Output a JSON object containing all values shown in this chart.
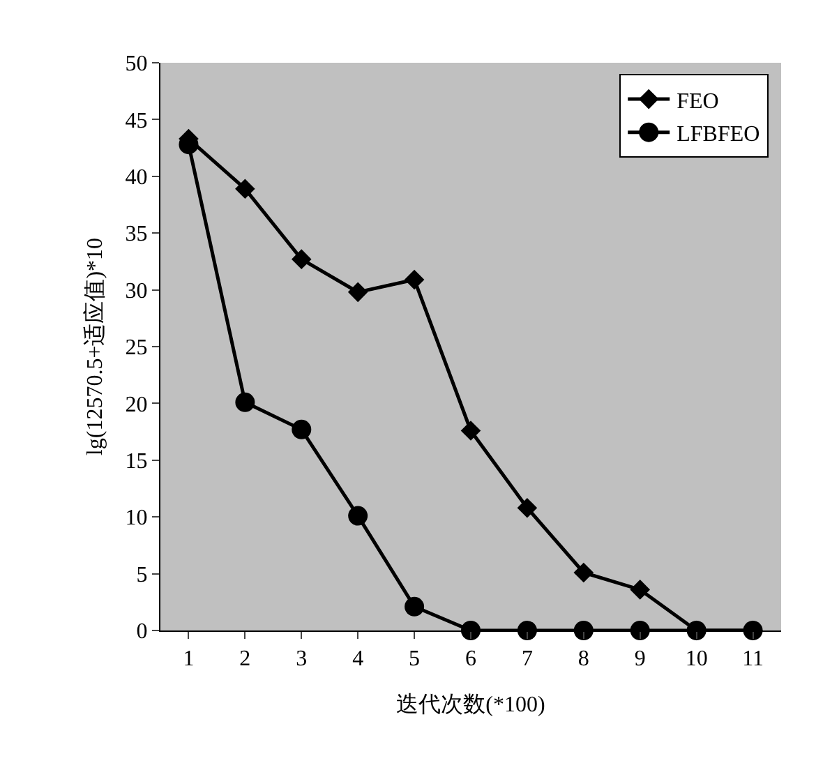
{
  "chart_data": {
    "type": "line",
    "xlabel": "迭代次数(*100)",
    "ylabel": "lg(12570.5+适应值)*10",
    "categories": [
      "1",
      "2",
      "3",
      "4",
      "5",
      "6",
      "7",
      "8",
      "9",
      "10",
      "11"
    ],
    "series": [
      {
        "name": "FEO",
        "color": "#000000",
        "marker": "diamond",
        "values": [
          43.3,
          38.9,
          32.7,
          29.8,
          30.9,
          17.6,
          10.8,
          5.1,
          3.6,
          0,
          0
        ]
      },
      {
        "name": "LFBFEO",
        "color": "#000000",
        "marker": "circle",
        "values": [
          42.8,
          20.1,
          17.7,
          10.1,
          2.1,
          0,
          0,
          0,
          0,
          0,
          0
        ]
      }
    ],
    "ylim": [
      0,
      50
    ],
    "yticks": [
      0,
      5,
      10,
      15,
      20,
      25,
      30,
      35,
      40,
      45,
      50
    ],
    "grid": false,
    "legend": "top right",
    "line_style": "solid"
  }
}
